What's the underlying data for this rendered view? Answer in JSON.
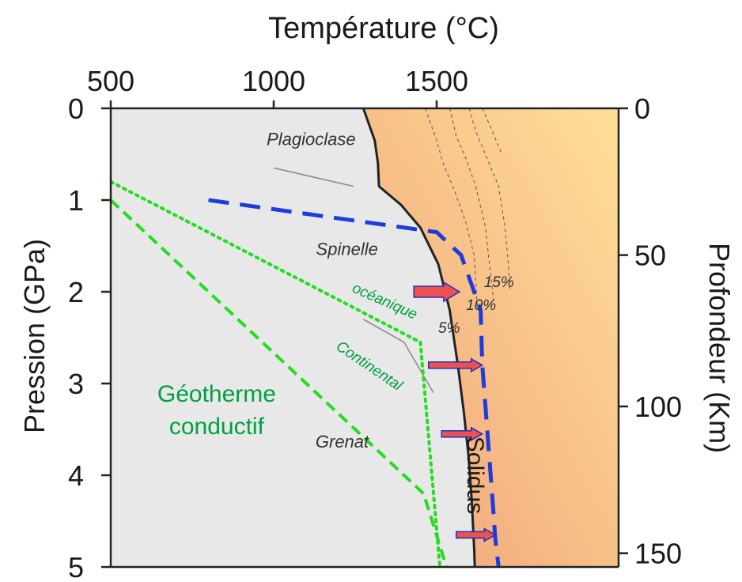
{
  "chart_data": {
    "type": "line",
    "top_axis": {
      "label": "Température (°C)",
      "ticks": [
        500,
        1000,
        1500
      ],
      "range": [
        500,
        1650
      ]
    },
    "left_axis": {
      "label": "Pression (GPa)",
      "ticks": [
        0,
        1,
        2,
        3,
        4,
        5
      ],
      "range": [
        0,
        5
      ]
    },
    "right_axis": {
      "label": "Profondeur (Km)",
      "ticks": [
        0,
        50,
        100,
        150
      ]
    },
    "grid": false,
    "colors": {
      "solid_region": "#e8e8e8",
      "melt_region_start": "#f0a07a",
      "melt_region_end": "#ffe098",
      "solidus_line": "#222222",
      "phase_boundary": "#888888",
      "geotherm": "#22dd22",
      "adiabat": "#1e3cdc",
      "arrow_fill": "#ee5050",
      "arrow_stroke": "#2030c0",
      "annotation_green": "#00a040"
    },
    "series": [
      {
        "role": "solidus",
        "points": [
          [
            1275,
            0
          ],
          [
            1310,
            0.35
          ],
          [
            1320,
            0.6
          ],
          [
            1323,
            0.85
          ],
          [
            1390,
            1.05
          ],
          [
            1450,
            1.3
          ],
          [
            1505,
            1.7
          ],
          [
            1540,
            2.2
          ],
          [
            1565,
            2.8
          ],
          [
            1583,
            3.3
          ],
          [
            1598,
            3.8
          ],
          [
            1608,
            4.3
          ],
          [
            1615,
            4.8
          ],
          [
            1617,
            5.0
          ]
        ]
      },
      {
        "role": "phase-boundary-upper",
        "points": [
          [
            1000,
            0.65
          ],
          [
            1245,
            0.85
          ]
        ]
      },
      {
        "role": "phase-boundary-lower",
        "points": [
          [
            1275,
            2.3
          ],
          [
            1400,
            2.55
          ],
          [
            1490,
            3.1
          ]
        ]
      },
      {
        "role": "geotherm-oceanic",
        "points": [
          [
            500,
            0.8
          ],
          [
            1450,
            2.55
          ],
          [
            1510,
            5.0
          ]
        ]
      },
      {
        "role": "geotherm-continental",
        "points": [
          [
            500,
            1.0
          ],
          [
            1460,
            4.2
          ],
          [
            1530,
            5.0
          ]
        ]
      },
      {
        "role": "adiabat",
        "points": [
          [
            800,
            1.0
          ],
          [
            1100,
            1.15
          ],
          [
            1500,
            1.35
          ],
          [
            1575,
            1.6
          ],
          [
            1635,
            2.2
          ],
          [
            1640,
            2.8
          ],
          [
            1655,
            3.5
          ],
          [
            1672,
            4.3
          ],
          [
            1680,
            4.7
          ],
          [
            1690,
            5.0
          ]
        ]
      },
      {
        "role": "melt-5",
        "points": [
          [
            1465,
            0
          ],
          [
            1500,
            0.35
          ],
          [
            1520,
            0.6
          ],
          [
            1555,
            0.9
          ],
          [
            1590,
            1.25
          ],
          [
            1615,
            1.6
          ],
          [
            1625,
            2.2
          ]
        ]
      },
      {
        "role": "melt-10",
        "points": [
          [
            1540,
            0
          ],
          [
            1560,
            0.3
          ],
          [
            1590,
            0.55
          ],
          [
            1620,
            0.85
          ],
          [
            1650,
            1.3
          ],
          [
            1662,
            1.7
          ],
          [
            1675,
            2.1
          ]
        ]
      },
      {
        "role": "melt-15",
        "points": [
          [
            1600,
            0
          ],
          [
            1620,
            0.25
          ],
          [
            1655,
            0.55
          ],
          [
            1690,
            0.85
          ],
          [
            1710,
            1.3
          ],
          [
            1720,
            1.7
          ],
          [
            1725,
            2.0
          ]
        ]
      },
      {
        "role": "melt-outer",
        "points": [
          [
            1640,
            0
          ],
          [
            1665,
            0.2
          ],
          [
            1700,
            0.5
          ]
        ]
      }
    ],
    "arrows": [
      {
        "from": [
          1430,
          2.0
        ],
        "to": [
          1570,
          2.0
        ]
      },
      {
        "from": [
          1475,
          2.8
        ],
        "to": [
          1640,
          2.8
        ]
      },
      {
        "from": [
          1515,
          3.55
        ],
        "to": [
          1640,
          3.55
        ]
      },
      {
        "from": [
          1560,
          4.65
        ],
        "to": [
          1680,
          4.65
        ]
      }
    ],
    "region_labels": [
      {
        "id": "plagioclase",
        "text": "Plagioclase",
        "at": [
          1115,
          0.4
        ]
      },
      {
        "id": "spinelle",
        "text": "Spinelle",
        "at": [
          1225,
          1.6
        ]
      },
      {
        "id": "grenat",
        "text": "Grenat",
        "at": [
          1210,
          3.7
        ]
      }
    ],
    "curve_labels": [
      {
        "id": "oceanique",
        "text": "océanique",
        "at": [
          1335,
          2.15
        ],
        "angle": 24
      },
      {
        "id": "continental",
        "text": "Continental",
        "at": [
          1285,
          2.85
        ],
        "angle": 34
      },
      {
        "id": "geotherme",
        "text": "Géotherme",
        "at": [
          825,
          3.2
        ]
      },
      {
        "id": "conductif",
        "text": "conductif",
        "at": [
          825,
          3.55
        ]
      }
    ],
    "pct_labels": [
      {
        "id": "pct-15",
        "text": "15%",
        "at": [
          1645,
          1.95
        ]
      },
      {
        "id": "pct-10",
        "text": "10%",
        "at": [
          1590,
          2.2
        ]
      },
      {
        "id": "pct-5",
        "text": "5%",
        "at": [
          1505,
          2.45
        ]
      }
    ],
    "solidus_label": {
      "text": "Solidus",
      "at": [
        1595,
        4.0
      ],
      "angle": 90
    }
  }
}
